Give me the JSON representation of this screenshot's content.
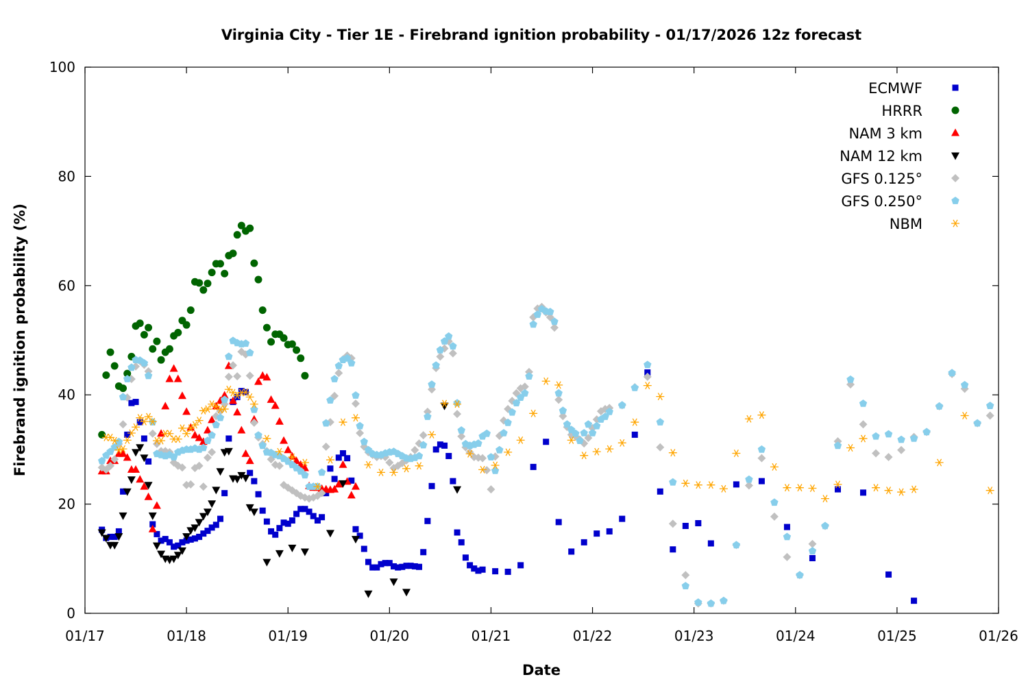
{
  "chart_data": {
    "type": "scatter",
    "title": "Virginia City - Tier 1E - Firebrand ignition probability - 01/17/2026 12z forecast",
    "xlabel": "Date",
    "ylabel": "Firebrand ignition probability (%)",
    "x_units": "hours since 01/17 00:00",
    "xlim": [
      0,
      216
    ],
    "ylim": [
      0,
      100
    ],
    "xticks": [
      {
        "value": 0,
        "label": "01/17"
      },
      {
        "value": 24,
        "label": "01/18"
      },
      {
        "value": 48,
        "label": "01/19"
      },
      {
        "value": 72,
        "label": "01/20"
      },
      {
        "value": 96,
        "label": "01/21"
      },
      {
        "value": 120,
        "label": "01/22"
      },
      {
        "value": 144,
        "label": "01/23"
      },
      {
        "value": 168,
        "label": "01/24"
      },
      {
        "value": 192,
        "label": "01/25"
      },
      {
        "value": 216,
        "label": "01/26"
      }
    ],
    "yticks": [
      {
        "value": 0,
        "label": "0"
      },
      {
        "value": 20,
        "label": "20"
      },
      {
        "value": 40,
        "label": "40"
      },
      {
        "value": 60,
        "label": "60"
      },
      {
        "value": 80,
        "label": "80"
      },
      {
        "value": 100,
        "label": "100"
      }
    ],
    "grid": false,
    "legend_position": "top-right",
    "series": [
      {
        "name": "ECMWF",
        "color": "#0000cc",
        "marker": "square",
        "segments": [
          {
            "start": 4,
            "step": 1,
            "values": [
              15.3,
              13.8,
              14,
              14,
              15,
              22.3,
              32.7,
              38.5,
              38.7,
              35,
              32,
              27.8,
              16.3,
              14.5,
              13.3,
              13.6,
              13,
              12.2,
              12.4,
              13,
              13.3,
              13.5,
              13.7,
              14,
              14.6,
              15.1,
              15.7,
              16.2,
              17.3,
              22,
              32,
              38.7,
              39.6,
              40.7,
              40.5,
              25.7,
              24.2,
              21.8,
              18.8,
              16.8,
              15,
              14.4,
              15.6,
              16.6,
              16.4,
              17,
              18.2,
              19.1,
              19.1,
              18.6,
              17.8,
              17,
              17.6,
              22,
              26.5,
              24.6,
              28.5,
              29.3,
              28.4,
              24.3,
              15.4,
              14.2,
              11.8,
              9.4,
              8.4,
              8.4,
              9,
              9.2,
              9.2,
              8.6,
              8.4,
              8.5,
              8.7,
              8.7,
              8.6,
              8.5,
              11.2,
              16.9,
              23.3,
              30,
              30.9,
              30.7,
              28.8,
              24.2,
              14.8,
              13,
              10.2,
              8.8,
              8.2,
              7.8,
              8
            ]
          },
          {
            "start": 97,
            "step": 3,
            "values": [
              7.7,
              7.6,
              8.8,
              26.8,
              31.4,
              16.7,
              11.3,
              13,
              14.6,
              15,
              17.3,
              32.7,
              44.1,
              22.3,
              11.7,
              16,
              16.5,
              12.8
            ]
          },
          {
            "start": 154,
            "step": 6,
            "values": [
              23.6,
              24.2,
              15.8,
              10.1,
              22.7,
              22.1,
              7.1,
              2.3
            ]
          }
        ]
      },
      {
        "name": "HRRR",
        "color": "#006400",
        "marker": "circle",
        "segments": [
          {
            "start": 4,
            "step": 1,
            "values": [
              32.7,
              43.6,
              47.8,
              45.3,
              41.6,
              41.2,
              43.9,
              47,
              52.6,
              53.1,
              51,
              52.3,
              48.4,
              49.8,
              46.4,
              47.8,
              48.4,
              50.8,
              51.4,
              53.6,
              52.8,
              55.5,
              60.7,
              60.5,
              59.2,
              60.4,
              62.4,
              64,
              64,
              62.2,
              65.5,
              65.9,
              69.3,
              71,
              70,
              70.5,
              64.1,
              61.1,
              55.5,
              52.3,
              49.7,
              51.1,
              51.1,
              50.4,
              49.2,
              49.3,
              48.2,
              46.7,
              43.5
            ]
          }
        ]
      },
      {
        "name": "NAM 3 km",
        "color": "#ff0000",
        "marker": "triangle-up",
        "segments": [
          {
            "start": 4,
            "step": 1,
            "values": [
              26,
              26,
              27.9,
              27.9,
              29.2,
              29.2,
              28.5,
              26.3,
              26.3,
              24.5,
              23.2,
              21.3,
              15.4,
              19.7,
              32.9,
              37.9,
              42.9,
              44.8,
              42.9,
              39.8,
              36.9,
              34,
              32.6,
              32.1,
              31.4,
              33.5,
              35.4,
              37.9,
              38.9,
              39.9,
              45.3,
              38.9,
              36.8,
              33.5,
              29.2,
              27.9,
              35.5,
              42.4,
              43.5,
              43.2,
              39.1,
              38,
              35.1,
              31.6,
              29.9,
              28.7,
              27.9,
              27.2,
              26.6,
              23.3,
              23,
              23,
              22.8,
              22.7,
              22.6,
              22.7,
              23.6,
              27.2,
              24.1,
              21.6,
              23.2
            ]
          }
        ]
      },
      {
        "name": "NAM 12 km",
        "color": "#000000",
        "marker": "triangle-down",
        "segments": [
          {
            "start": 4,
            "step": 1,
            "values": [
              14.8,
              13.8,
              12.5,
              12.5,
              14.1,
              17.9,
              22.3,
              24.5,
              29.5,
              30.4,
              28.5,
              23.5,
              17.9,
              12.4,
              10.9,
              10,
              9.8,
              10,
              10.7,
              11.5,
              14.1,
              15.2,
              15.7,
              16.7,
              17.8,
              18.6,
              20.1,
              22.6,
              26,
              29.5,
              29.7,
              24.7,
              24.6,
              25.3,
              24.8,
              19.4,
              18.6
            ]
          },
          {
            "start": 43,
            "step": 3,
            "values": [
              9.4,
              11,
              12,
              11.3,
              null,
              14.7,
              23.8,
              13.6,
              3.6,
              null,
              5.8,
              3.9,
              null,
              null,
              38,
              22.7
            ]
          }
        ]
      },
      {
        "name": "GFS 0.125°",
        "color": "#c0c0c0",
        "marker": "diamond",
        "segments": [
          {
            "start": 4,
            "step": 1,
            "values": [
              26.7,
              26.3,
              27,
              28.2,
              31,
              34.6,
              39.5,
              42.9,
              45.2,
              46.2,
              45.5,
              44.3,
              32.9,
              31,
              29.7,
              29.7,
              29.5,
              27.6,
              27,
              26.7,
              23.5,
              23.6,
              26.6,
              27,
              23.2,
              28.5,
              29.5,
              36.1,
              37,
              38.3,
              43.3,
              45.4,
              43.4,
              47.9,
              47.4,
              43.5,
              34.9,
              32.2,
              31,
              29.7,
              28.2,
              27.2,
              27,
              23.5,
              23,
              22.5,
              22,
              21.5,
              21.2,
              21,
              21.2,
              21.5,
              22,
              30.5,
              35,
              39.8,
              44,
              46.5,
              47.2,
              46.7,
              38.4,
              33,
              30.5,
              29.5,
              29,
              28.6,
              28.8,
              28.6,
              27.6,
              26.6,
              27,
              27.5,
              28,
              28.6,
              29.9,
              31.1,
              32.6,
              36.9,
              41,
              44.9,
              47,
              48.5,
              49.8,
              47.6,
              36.5,
              32.4,
              30.4,
              29.5,
              28.6,
              28.5,
              28.4,
              26.2,
              22.7,
              28.7,
              32.5,
              35.3,
              37.4,
              38.9,
              40.3,
              41.2,
              41.5,
              44.2,
              54.2,
              55.8,
              56.1,
              55.1,
              54.2,
              52.3,
              39.1,
              36.1,
              34.1,
              32.7,
              32.4,
              31.8,
              31.1,
              32.1,
              33.9,
              35.5,
              37,
              37.4,
              37.6
            ]
          },
          {
            "start": 127,
            "step": 3,
            "values": [
              38.1,
              41.4,
              43.3,
              30.4,
              16.4,
              7,
              1.8,
              1.8,
              2.3,
              12.5,
              23.4,
              28.4,
              17.7,
              10.3,
              7,
              12.7,
              16,
              31.5,
              41.9,
              34.6,
              29.3,
              28.6,
              29.9,
              32.3,
              33.2,
              37.9,
              43.8,
              41.1,
              34.8,
              36.2
            ]
          }
        ]
      },
      {
        "name": "GFS 0.250°",
        "color": "#87ceeb",
        "marker": "pentagon",
        "segments": [
          {
            "start": 4,
            "step": 1,
            "values": [
              27.9,
              28.9,
              29.6,
              30.4,
              31.4,
              39.6,
              42.9,
              45,
              46.4,
              46.3,
              45.8,
              43.5,
              35,
              29.2,
              29,
              28.8,
              29,
              28.6,
              29.5,
              29.8,
              30,
              30,
              30.2,
              30,
              30.3,
              31.6,
              32.6,
              34.5,
              35.8,
              39.1,
              47,
              49.9,
              49.5,
              49.3,
              49.4,
              47.7,
              37.3,
              32.6,
              30.7,
              29.5,
              29.4,
              29,
              28.8,
              28.3,
              27.8,
              27.2,
              26.6,
              26,
              25.3,
              23.2,
              23.2,
              23.2,
              25.8,
              34.8,
              39,
              42.9,
              45.3,
              46.4,
              46.7,
              45.8,
              39.9,
              34.3,
              31.4,
              29.9,
              29.2,
              29,
              29,
              29.3,
              29.5,
              29.6,
              29.2,
              28.8,
              28.4,
              28.3,
              28.5,
              28.8,
              30.8,
              36,
              41.9,
              45.4,
              48.2,
              49.8,
              50.7,
              48.9,
              38.5,
              33.5,
              31,
              30.7,
              30.9,
              31.1,
              32.4,
              32.9,
              28.6,
              26.1,
              29.9,
              33,
              34.9,
              36.8,
              38.5,
              39.5,
              40.3,
              43.4,
              52.9,
              54.7,
              55.7,
              55.3,
              55.2,
              53.4,
              40.3,
              37.1,
              34.6,
              33.6,
              32.9,
              31.6,
              33,
              34.6,
              33,
              34.3,
              35.5,
              36,
              36.9
            ]
          },
          {
            "start": 127,
            "step": 3,
            "values": [
              38.1,
              41.3,
              45.5,
              35,
              24,
              5,
              2,
              1.8,
              2.3,
              12.5,
              24.5,
              30,
              20.3,
              14,
              7,
              11.4,
              16,
              30.7,
              42.8,
              38.4,
              32.4,
              32.8,
              31.8,
              32,
              33.2,
              37.9,
              44,
              41.8,
              34.8,
              38
            ]
          }
        ]
      },
      {
        "name": "NBM",
        "color": "#ffa500",
        "marker": "asterisk",
        "segments": [
          {
            "start": 5,
            "step": 1,
            "values": [
              32.2,
              32.2,
              31.6,
              29.9,
              30.1,
              31.7,
              33,
              34.1,
              35.8,
              35.1,
              36,
              35.1,
              31.6,
              31.6,
              32.9,
              32.9,
              31.9,
              31.9,
              33.9,
              32.9,
              33.9,
              34.5,
              35.3,
              37.1,
              37.4,
              38.3,
              37.9,
              37.3,
              37.4,
              41,
              40.4,
              39.9,
              40.4,
              40.5,
              39.6,
              38.3
            ]
          },
          {
            "start": 43,
            "step": 3,
            "values": [
              32,
              29.6,
              28.6,
              27.6,
              23.2,
              28.1,
              35,
              35.8,
              27.2,
              25.8,
              25.8,
              26.5,
              27,
              32.7,
              38.4,
              38.3,
              29.2,
              26.3,
              27.1,
              29.5,
              31.7,
              36.6,
              42.5,
              41.8,
              31.7,
              28.9,
              29.6,
              30.1,
              31.2,
              35,
              41.7,
              39.7,
              29.4,
              23.8,
              23.5,
              23.5,
              22.8,
              29.3,
              35.6,
              36.3,
              26.8,
              23,
              23,
              22.9,
              21,
              23.6,
              30.3,
              32,
              23,
              22.5,
              22.2,
              22.7
            ]
          },
          {
            "start": 202,
            "step": 6,
            "values": [
              27.6,
              36.2,
              22.5
            ]
          }
        ]
      }
    ]
  }
}
